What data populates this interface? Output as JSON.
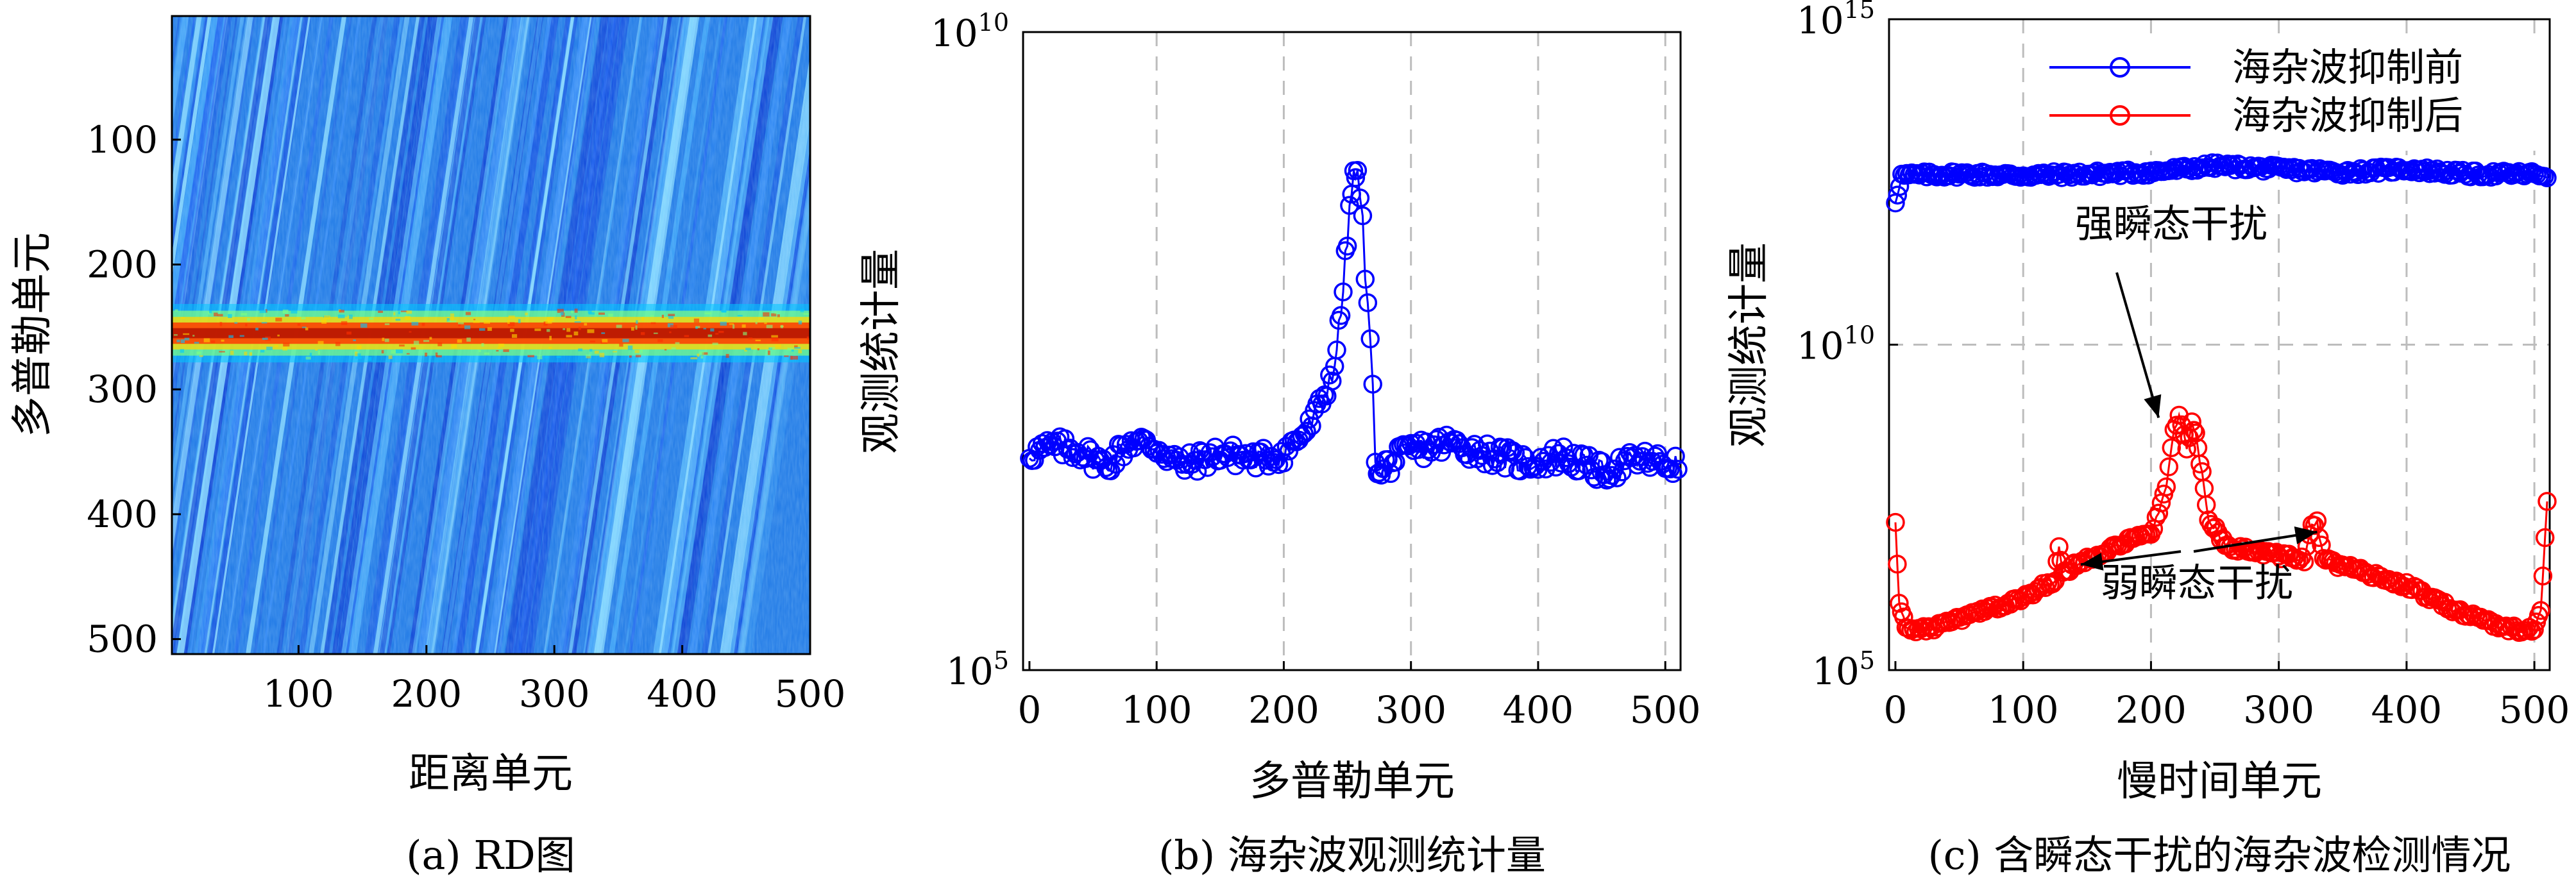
{
  "chart_data": [
    {
      "type": "heatmap",
      "caption": "(a) RD图",
      "xlabel": "距离单元",
      "ylabel": "多普勒单元",
      "xticks": [
        100,
        200,
        300,
        400,
        500
      ],
      "yticks": [
        100,
        200,
        300,
        400,
        500
      ],
      "xlim": [
        1,
        500
      ],
      "ylim": [
        1,
        512
      ],
      "ridge": {
        "doppler_center": 255,
        "doppler_halfwidth": 18
      },
      "colormap": [
        "#00008f",
        "#0050ff",
        "#00c8ff",
        "#7fff7f",
        "#ffd700",
        "#ff3000",
        "#a00000"
      ]
    },
    {
      "type": "line",
      "caption": "(b) 海杂波观测统计量",
      "xlabel": "多普勒单元",
      "ylabel": "观测统计量",
      "xticks": [
        0,
        100,
        200,
        300,
        400,
        500
      ],
      "yticks": [
        {
          "base": "10",
          "exp": "5",
          "value": 5
        },
        {
          "base": "10",
          "exp": "10",
          "value": 10
        }
      ],
      "xlim": [
        -5,
        512
      ],
      "ylim_log10": [
        5,
        10
      ],
      "log_scale": true,
      "grid": "x-dashed",
      "marker": "circle",
      "series": [
        {
          "color": "#0000ff",
          "x": [
            0,
            20,
            40,
            60,
            80,
            100,
            120,
            150,
            180,
            200,
            210,
            220,
            230,
            240,
            245,
            250,
            255,
            258,
            262,
            266,
            270,
            272,
            275,
            280,
            300,
            330,
            360,
            390,
            420,
            450,
            480,
            510
          ],
          "y_log10": [
            6.7,
            6.75,
            6.72,
            6.6,
            6.8,
            6.75,
            6.6,
            6.7,
            6.65,
            6.7,
            6.8,
            6.9,
            7.1,
            7.4,
            7.8,
            8.4,
            8.9,
            8.85,
            8.5,
            7.8,
            7.3,
            6.7,
            6.5,
            6.6,
            6.72,
            6.78,
            6.7,
            6.62,
            6.68,
            6.55,
            6.65,
            6.6
          ]
        }
      ]
    },
    {
      "type": "line",
      "caption": "(c) 含瞬态干扰的海杂波检测情况",
      "xlabel": "慢时间单元",
      "ylabel": "观测统计量",
      "xticks": [
        0,
        100,
        200,
        300,
        400,
        500
      ],
      "yticks": [
        {
          "base": "10",
          "exp": "5",
          "value": 5
        },
        {
          "base": "10",
          "exp": "10",
          "value": 10
        },
        {
          "base": "10",
          "exp": "15",
          "value": 15
        }
      ],
      "xlim": [
        -5,
        512
      ],
      "ylim_log10": [
        5,
        15
      ],
      "log_scale": true,
      "grid": "dashed",
      "legend_position": "top-right",
      "marker": "circle",
      "series": [
        {
          "name": "海杂波抑制前",
          "color": "#0000ff",
          "x": [
            0,
            5,
            50,
            100,
            150,
            200,
            250,
            300,
            350,
            400,
            450,
            500,
            510
          ],
          "y_log10": [
            12.2,
            12.6,
            12.62,
            12.6,
            12.62,
            12.65,
            12.75,
            12.7,
            12.65,
            12.7,
            12.62,
            12.62,
            12.6
          ]
        },
        {
          "name": "海杂波抑制后",
          "color": "#ff0000",
          "x": [
            0,
            3,
            10,
            30,
            60,
            100,
            125,
            128,
            131,
            140,
            170,
            200,
            212,
            218,
            222,
            228,
            232,
            235,
            240,
            245,
            260,
            290,
            320,
            326,
            330,
            335,
            350,
            400,
            440,
            470,
            490,
            500,
            505,
            510
          ],
          "y_log10": [
            7.3,
            6.0,
            5.6,
            5.65,
            5.85,
            6.1,
            6.4,
            6.85,
            6.5,
            6.6,
            6.9,
            7.1,
            7.8,
            8.7,
            8.9,
            8.4,
            8.8,
            8.6,
            8.0,
            7.3,
            6.9,
            6.8,
            6.7,
            7.2,
            7.25,
            6.7,
            6.6,
            6.3,
            5.9,
            5.7,
            5.6,
            5.65,
            5.9,
            7.6
          ]
        }
      ],
      "annotations": [
        {
          "text": "强瞬态干扰",
          "target_x": 220,
          "target_y_log10": 8.7
        },
        {
          "text": "弱瞬态干扰",
          "targets": [
            {
              "x": 140,
              "y_log10": 6.8
            },
            {
              "x": 320,
              "y_log10": 7.3
            }
          ]
        }
      ]
    }
  ]
}
